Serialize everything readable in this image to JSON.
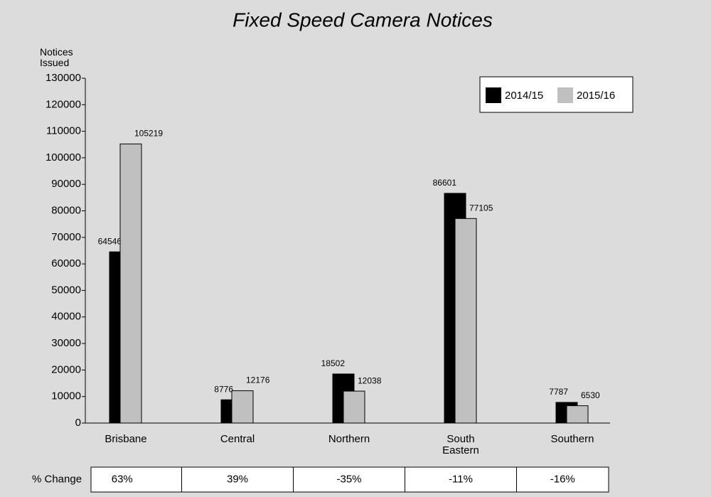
{
  "chart_data": {
    "type": "bar",
    "title": "Fixed Speed Camera Notices",
    "y_axis_label": "Notices Issued",
    "categories": [
      "Brisbane",
      "Central",
      "Northern",
      "South Eastern",
      "Southern"
    ],
    "series": [
      {
        "name": "2014/15",
        "color": "#000000",
        "values": [
          64546,
          8776,
          18502,
          86601,
          7787
        ]
      },
      {
        "name": "2015/16",
        "color": "#c0c0c0",
        "values": [
          105219,
          12176,
          12038,
          77105,
          6530
        ]
      }
    ],
    "ylim": [
      0,
      130000
    ],
    "yticks": [
      0,
      10000,
      20000,
      30000,
      40000,
      50000,
      60000,
      70000,
      80000,
      90000,
      100000,
      110000,
      120000,
      130000
    ],
    "grid": false,
    "legend": "top-right",
    "change_table": {
      "label": "% Change",
      "values": [
        63,
        39,
        -35,
        -11,
        -16
      ],
      "value_labels": [
        "63%",
        "39%",
        "-35%",
        "-11%",
        "-16%"
      ]
    }
  }
}
